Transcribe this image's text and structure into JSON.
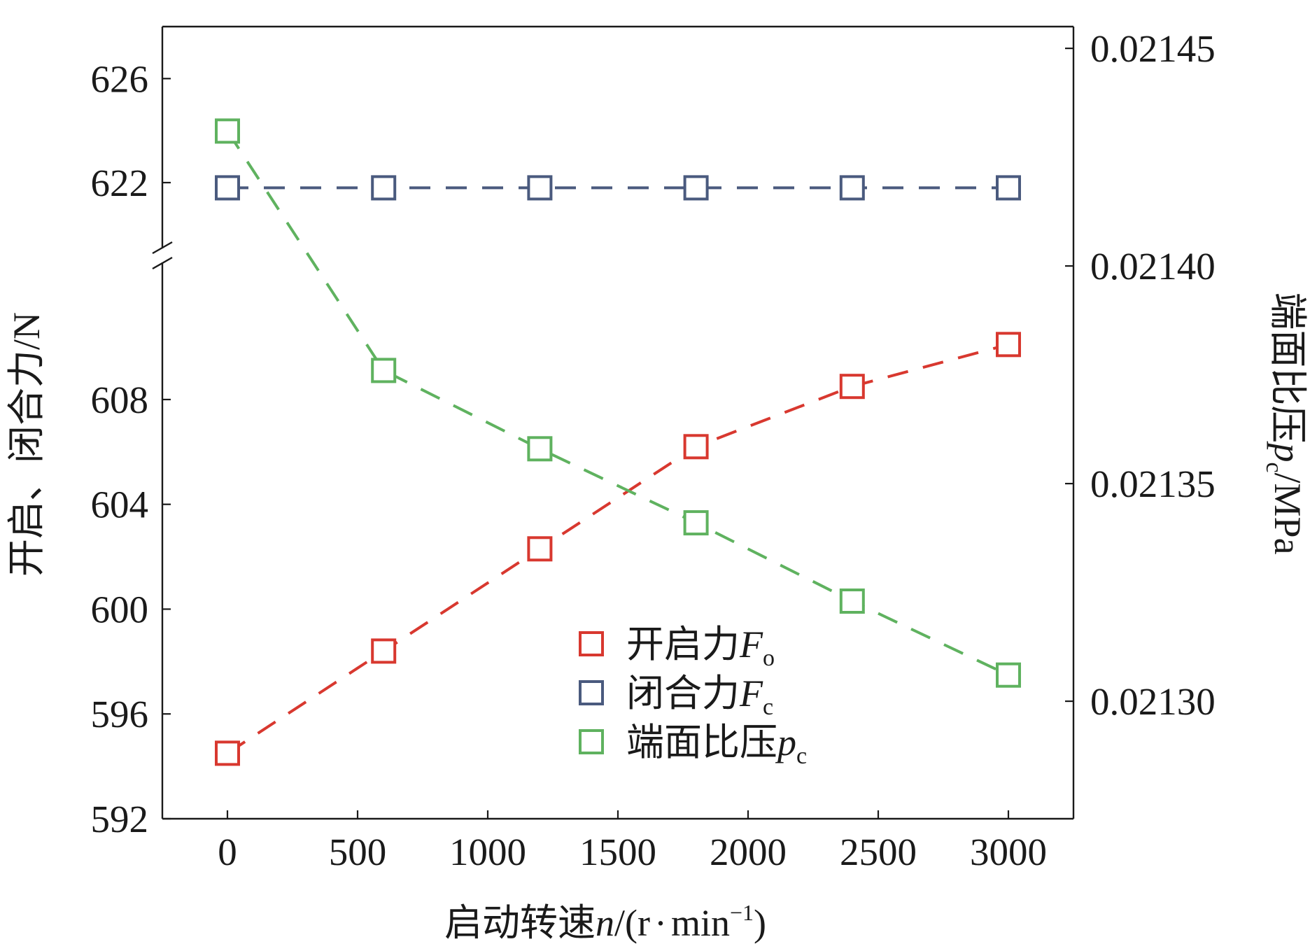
{
  "chart_data": {
    "type": "line",
    "categories": [
      0,
      600,
      1200,
      1800,
      2400,
      3000
    ],
    "x_axis": {
      "label_prefix": "启动转速",
      "label_var": "n",
      "label_unit_open": "/(r",
      "label_dot": "·",
      "label_unit_min": "min",
      "label_exp": "−1",
      "label_unit_close": ")",
      "range": [
        -250,
        3250
      ],
      "ticks": [
        0,
        500,
        1000,
        1500,
        2000,
        2500,
        3000
      ],
      "tick_labels": [
        "0",
        "500",
        "1000",
        "1500",
        "2000",
        "2500",
        "3000"
      ]
    },
    "y_left": {
      "label": "开启、闭合力/N",
      "lower_range": [
        592,
        613.5
      ],
      "upper_range": [
        619.2,
        628
      ],
      "axis_break": true,
      "ticks": [
        592,
        596,
        600,
        604,
        608,
        622,
        626
      ],
      "tick_labels": [
        "592",
        "596",
        "600",
        "604",
        "608",
        "622",
        "626"
      ]
    },
    "y_right": {
      "label_prefix": "端面比压",
      "label_var": "p",
      "label_sub": "c",
      "label_unit": "/MPa",
      "range": [
        0.021273,
        0.021455
      ],
      "ticks": [
        0.0213,
        0.02135,
        0.0214,
        0.02145
      ],
      "tick_labels": [
        "0.02130",
        "0.02135",
        "0.02140",
        "0.02145"
      ]
    },
    "series": [
      {
        "name": "开启力F",
        "legend_prefix": "开启力",
        "legend_var": "F",
        "legend_sub": "o",
        "axis": "left",
        "color": "#d8382f",
        "values": [
          594.5,
          598.4,
          602.3,
          606.2,
          608.5,
          610.1
        ]
      },
      {
        "name": "闭合力F",
        "legend_prefix": "闭合力",
        "legend_var": "F",
        "legend_sub": "c",
        "axis": "left",
        "color": "#4a5a7e",
        "values": [
          621.8,
          621.8,
          621.8,
          621.8,
          621.8,
          621.8
        ]
      },
      {
        "name": "端面比压p",
        "legend_prefix": "端面比压",
        "legend_var": "p",
        "legend_sub": "c",
        "axis": "right",
        "color": "#5fb25f",
        "values": [
          0.021431,
          0.021376,
          0.021358,
          0.021341,
          0.021323,
          0.021306
        ]
      }
    ],
    "legend_position": "lower-center",
    "marker": "open-square",
    "line_style": "dashed",
    "grid": false
  }
}
